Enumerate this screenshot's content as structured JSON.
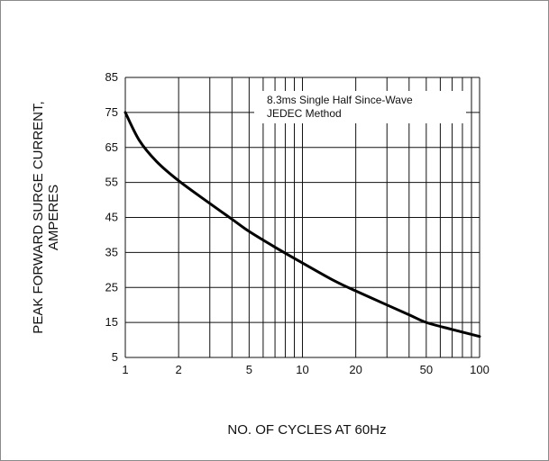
{
  "chart_data": {
    "type": "line",
    "xlabel": "NO. OF CYCLES AT 60Hz",
    "ylabel": [
      "PEAK FORWARD SURGE CURRENT,",
      "AMPERES"
    ],
    "xscale": "log",
    "xlim": [
      1,
      100
    ],
    "ylim": [
      5,
      85
    ],
    "x_ticks": [
      1,
      2,
      5,
      10,
      20,
      50,
      100
    ],
    "y_ticks": [
      5,
      15,
      25,
      35,
      45,
      55,
      65,
      75,
      85
    ],
    "grid": true,
    "annotation": [
      "8.3ms Single Half Since-Wave",
      "JEDEC Method"
    ],
    "series": [
      {
        "x": [
          1,
          1.2,
          1.5,
          2,
          3,
          4,
          5,
          7,
          10,
          15,
          20,
          30,
          40,
          50,
          70,
          100
        ],
        "y": [
          75,
          67,
          61,
          55.5,
          49,
          44.5,
          41,
          36.5,
          32,
          27,
          24,
          20,
          17.2,
          15,
          13,
          11
        ]
      }
    ],
    "line_color": "#000000"
  }
}
